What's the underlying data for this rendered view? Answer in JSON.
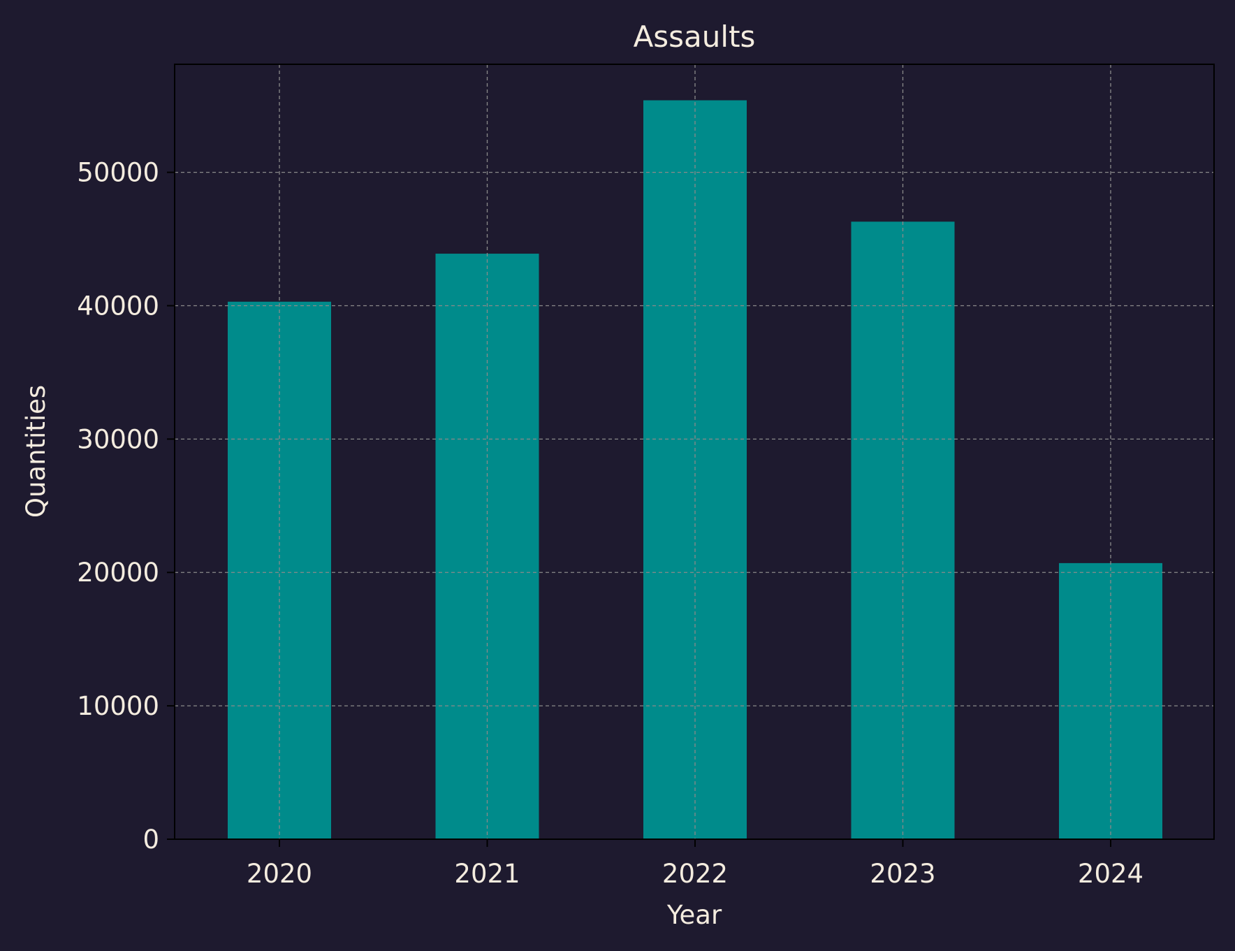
{
  "colors": {
    "background": "#1e1a2f",
    "bar": "#008b8b",
    "grid": "#8a8a8a",
    "text": "#f4ecdf",
    "axis": "#000000"
  },
  "chart_data": {
    "type": "bar",
    "title": "Assaults",
    "xlabel": "Year",
    "ylabel": "Quantities",
    "categories": [
      "2020",
      "2021",
      "2022",
      "2023",
      "2024"
    ],
    "values": [
      40300,
      43900,
      55400,
      46300,
      20700
    ],
    "ylim": [
      0,
      58100
    ],
    "yticks": [
      0,
      10000,
      20000,
      30000,
      40000,
      50000
    ],
    "grid": true,
    "legend": "none"
  }
}
